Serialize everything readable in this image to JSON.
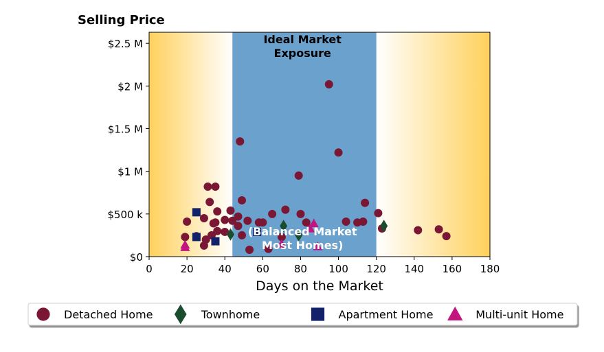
{
  "chart_data": {
    "type": "scatter",
    "title": "",
    "ylabel": "Selling Price",
    "xlabel": "Days on the Market",
    "xlim": [
      0,
      180
    ],
    "ylim": [
      0,
      2630000
    ],
    "x_ticks": [
      0,
      20,
      40,
      60,
      80,
      100,
      120,
      140,
      160,
      180
    ],
    "y_ticks": [
      {
        "value": 0,
        "label": "$0"
      },
      {
        "value": 500000,
        "label": "$500 k"
      },
      {
        "value": 1000000,
        "label": "$1 M"
      },
      {
        "value": 1500000,
        "label": "$1.5 M"
      },
      {
        "value": 2000000,
        "label": "$2 M"
      },
      {
        "value": 2500000,
        "label": "$2.5 M"
      }
    ],
    "grid": false,
    "legend_position": "bottom",
    "regions": {
      "ideal": {
        "x_start": 44,
        "x_end": 120,
        "color": "#6aa1cd"
      },
      "gradient_color": "#ffd15c"
    },
    "annotations": [
      {
        "text_lines": [
          "Ideal Market",
          "Exposure"
        ],
        "x": 81,
        "y": 2500000,
        "color": "#000000"
      },
      {
        "text_lines": [
          "(Balanced Market",
          "Most Homes)"
        ],
        "x": 81,
        "y": 250000,
        "color": "#ffffff"
      }
    ],
    "series": [
      {
        "name": "Detached Home",
        "marker": "circle",
        "color": "#7a1734",
        "x": [
          95,
          100,
          48,
          79,
          31,
          35,
          114,
          49,
          121,
          72,
          65,
          80,
          36,
          43,
          32,
          20,
          29,
          34,
          35,
          47,
          40,
          44,
          52,
          58,
          60,
          83,
          104,
          110,
          113,
          123,
          142,
          153,
          157,
          19,
          25,
          30,
          33,
          40,
          47,
          49,
          63,
          53,
          70,
          29,
          36
        ],
        "y": [
          2020000,
          1220000,
          1350000,
          950000,
          820000,
          820000,
          630000,
          660000,
          510000,
          550000,
          500000,
          500000,
          530000,
          540000,
          640000,
          410000,
          450000,
          390000,
          400000,
          470000,
          430000,
          420000,
          420000,
          400000,
          400000,
          400000,
          410000,
          400000,
          410000,
          330000,
          310000,
          320000,
          240000,
          230000,
          240000,
          200000,
          250000,
          290000,
          360000,
          250000,
          90000,
          80000,
          230000,
          130000,
          300000
        ]
      },
      {
        "name": "Townhome",
        "marker": "diamond",
        "color": "#1a4d2e",
        "x": [
          43,
          71,
          79,
          124
        ],
        "y": [
          260000,
          360000,
          250000,
          360000
        ]
      },
      {
        "name": "Apartment Home",
        "marker": "square",
        "color": "#13216b",
        "x": [
          25,
          25,
          35,
          57
        ],
        "y": [
          520000,
          230000,
          180000,
          290000
        ]
      },
      {
        "name": "Multi-unit Home",
        "marker": "triangle",
        "color": "#c2157f",
        "x": [
          19,
          19,
          70,
          85,
          87,
          89
        ],
        "y": [
          140000,
          110000,
          150000,
          330000,
          390000,
          120000
        ]
      }
    ]
  }
}
